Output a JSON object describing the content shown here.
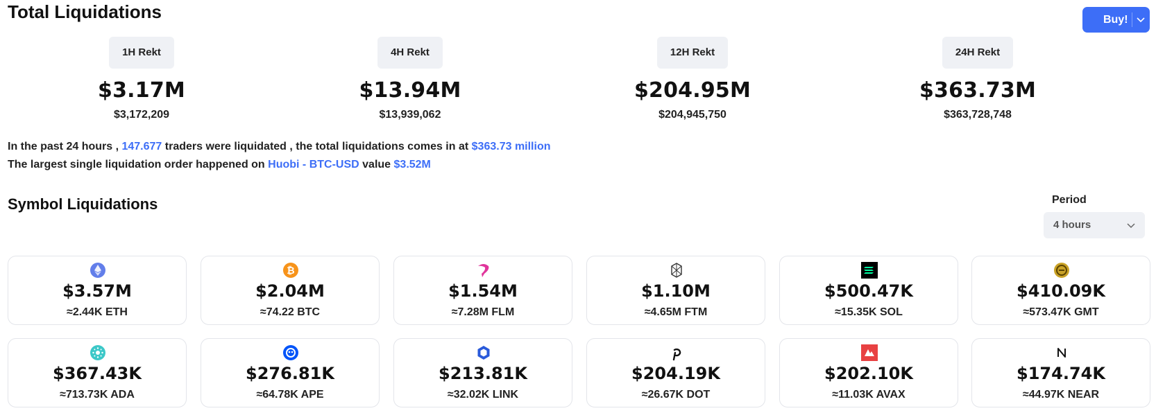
{
  "header": {
    "title": "Total Liquidations",
    "buy_label": "Buy!"
  },
  "periods": [
    {
      "label": "1H Rekt",
      "value": "$3.17M",
      "exact": "$3,172,209"
    },
    {
      "label": "4H Rekt",
      "value": "$13.94M",
      "exact": "$13,939,062"
    },
    {
      "label": "12H Rekt",
      "value": "$204.95M",
      "exact": "$204,945,750"
    },
    {
      "label": "24H Rekt",
      "value": "$363.73M",
      "exact": "$363,728,748"
    }
  ],
  "summary": {
    "line1_prefix": "In the past 24 hours ,",
    "traders": "147.677",
    "line1_mid": "traders were liquidated , the total liquidations comes in at",
    "total": "$363.73 million",
    "line2_prefix": "The largest single liquidation order happened on",
    "exchange_pair": "Huobi - BTC-USD",
    "line2_mid": "value",
    "largest_value": "$3.52M"
  },
  "symbols": {
    "title": "Symbol Liquidations",
    "period_label": "Period",
    "period_selected": "4 hours",
    "cards": [
      {
        "icon": "ethereum-icon",
        "usd": "$3.57M",
        "amount": "≈2.44K ETH",
        "color": "#627eea"
      },
      {
        "icon": "bitcoin-icon",
        "usd": "$2.04M",
        "amount": "≈74.22 BTC",
        "color": "#f7931a"
      },
      {
        "icon": "flm-icon",
        "usd": "$1.54M",
        "amount": "≈7.28M FLM",
        "color": "#e0359b"
      },
      {
        "icon": "fantom-icon",
        "usd": "$1.10M",
        "amount": "≈4.65M FTM",
        "color": "#333333"
      },
      {
        "icon": "solana-icon",
        "usd": "$500.47K",
        "amount": "≈15.35K SOL",
        "color": "#000000"
      },
      {
        "icon": "gmt-icon",
        "usd": "$410.09K",
        "amount": "≈573.47K GMT",
        "color": "#c9a227"
      },
      {
        "icon": "cardano-icon",
        "usd": "$367.43K",
        "amount": "≈713.73K ADA",
        "color": "#3cc8c8"
      },
      {
        "icon": "apecoin-icon",
        "usd": "$276.81K",
        "amount": "≈64.78K APE",
        "color": "#0054f9"
      },
      {
        "icon": "chainlink-icon",
        "usd": "$213.81K",
        "amount": "≈32.02K LINK",
        "color": "#2a5ada"
      },
      {
        "icon": "polkadot-icon",
        "usd": "$204.19K",
        "amount": "≈26.67K DOT",
        "color": "#111111"
      },
      {
        "icon": "avalanche-icon",
        "usd": "$202.10K",
        "amount": "≈11.03K AVAX",
        "color": "#e84142"
      },
      {
        "icon": "near-icon",
        "usd": "$174.74K",
        "amount": "≈44.97K NEAR",
        "color": "#111111"
      }
    ]
  }
}
